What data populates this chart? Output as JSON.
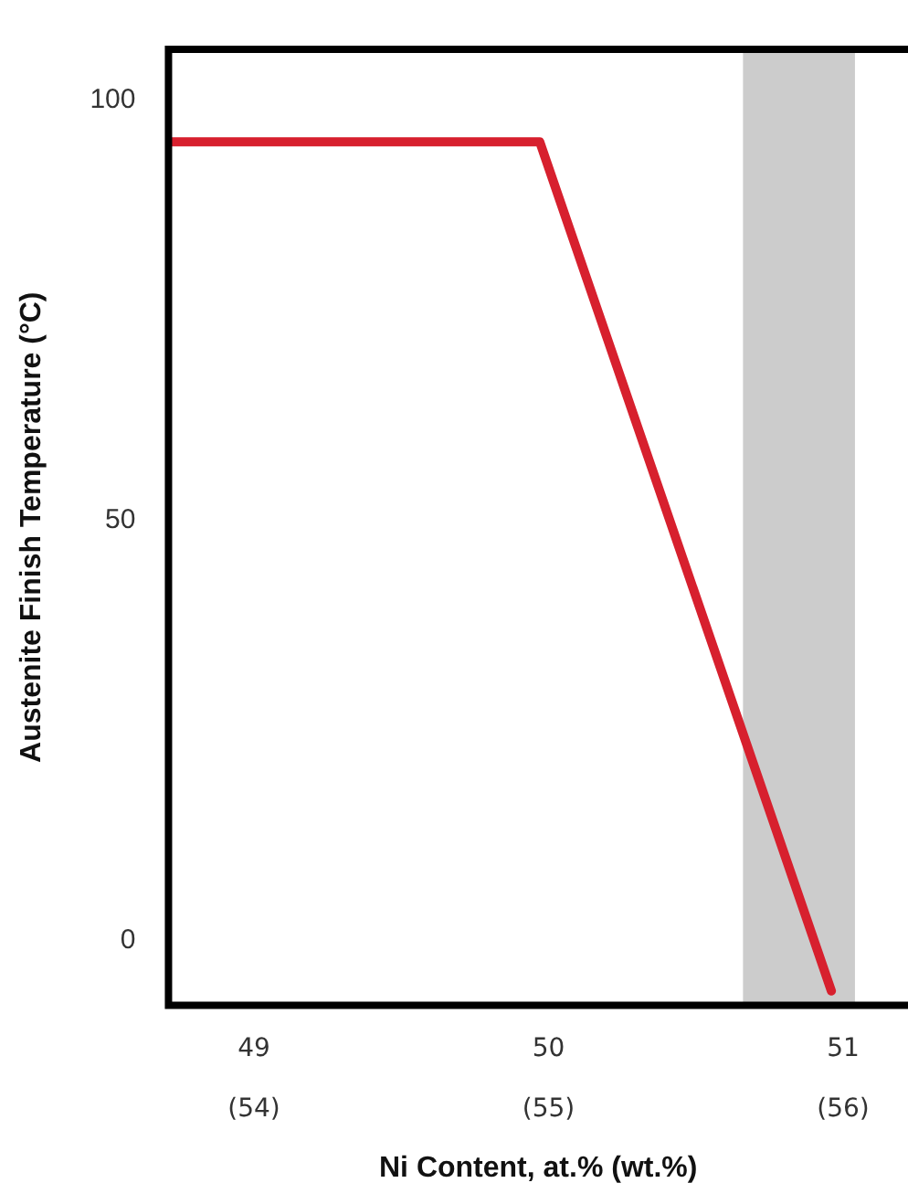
{
  "chart_data": {
    "type": "line",
    "xlabel": "Ni Content, at.% (wt.%)",
    "ylabel": "Austenite Finish Temperature (°C)",
    "series": [
      {
        "color": "#d7202e",
        "x": [
          48.71,
          49.97,
          50.96
        ],
        "values": [
          95,
          95,
          -6
        ]
      }
    ],
    "xlim": [
      48.71,
      51.22
    ],
    "ylim": [
      -7.7,
      106
    ],
    "xticks": [
      49,
      50,
      51
    ],
    "x2lim": [
      53.71,
      56.22
    ],
    "x2ticks": [
      {
        "value": 54,
        "label": "(54)"
      },
      {
        "value": 55,
        "label": "(55)"
      },
      {
        "value": 56,
        "label": "(56)"
      }
    ],
    "yticks": [
      0,
      50,
      100
    ],
    "bands": [
      {
        "axis": "x",
        "from": 50.66,
        "to": 51.04,
        "color": "#cccccc"
      }
    ],
    "grid": false,
    "legend": false,
    "marker": "none",
    "line_style": "solid"
  }
}
